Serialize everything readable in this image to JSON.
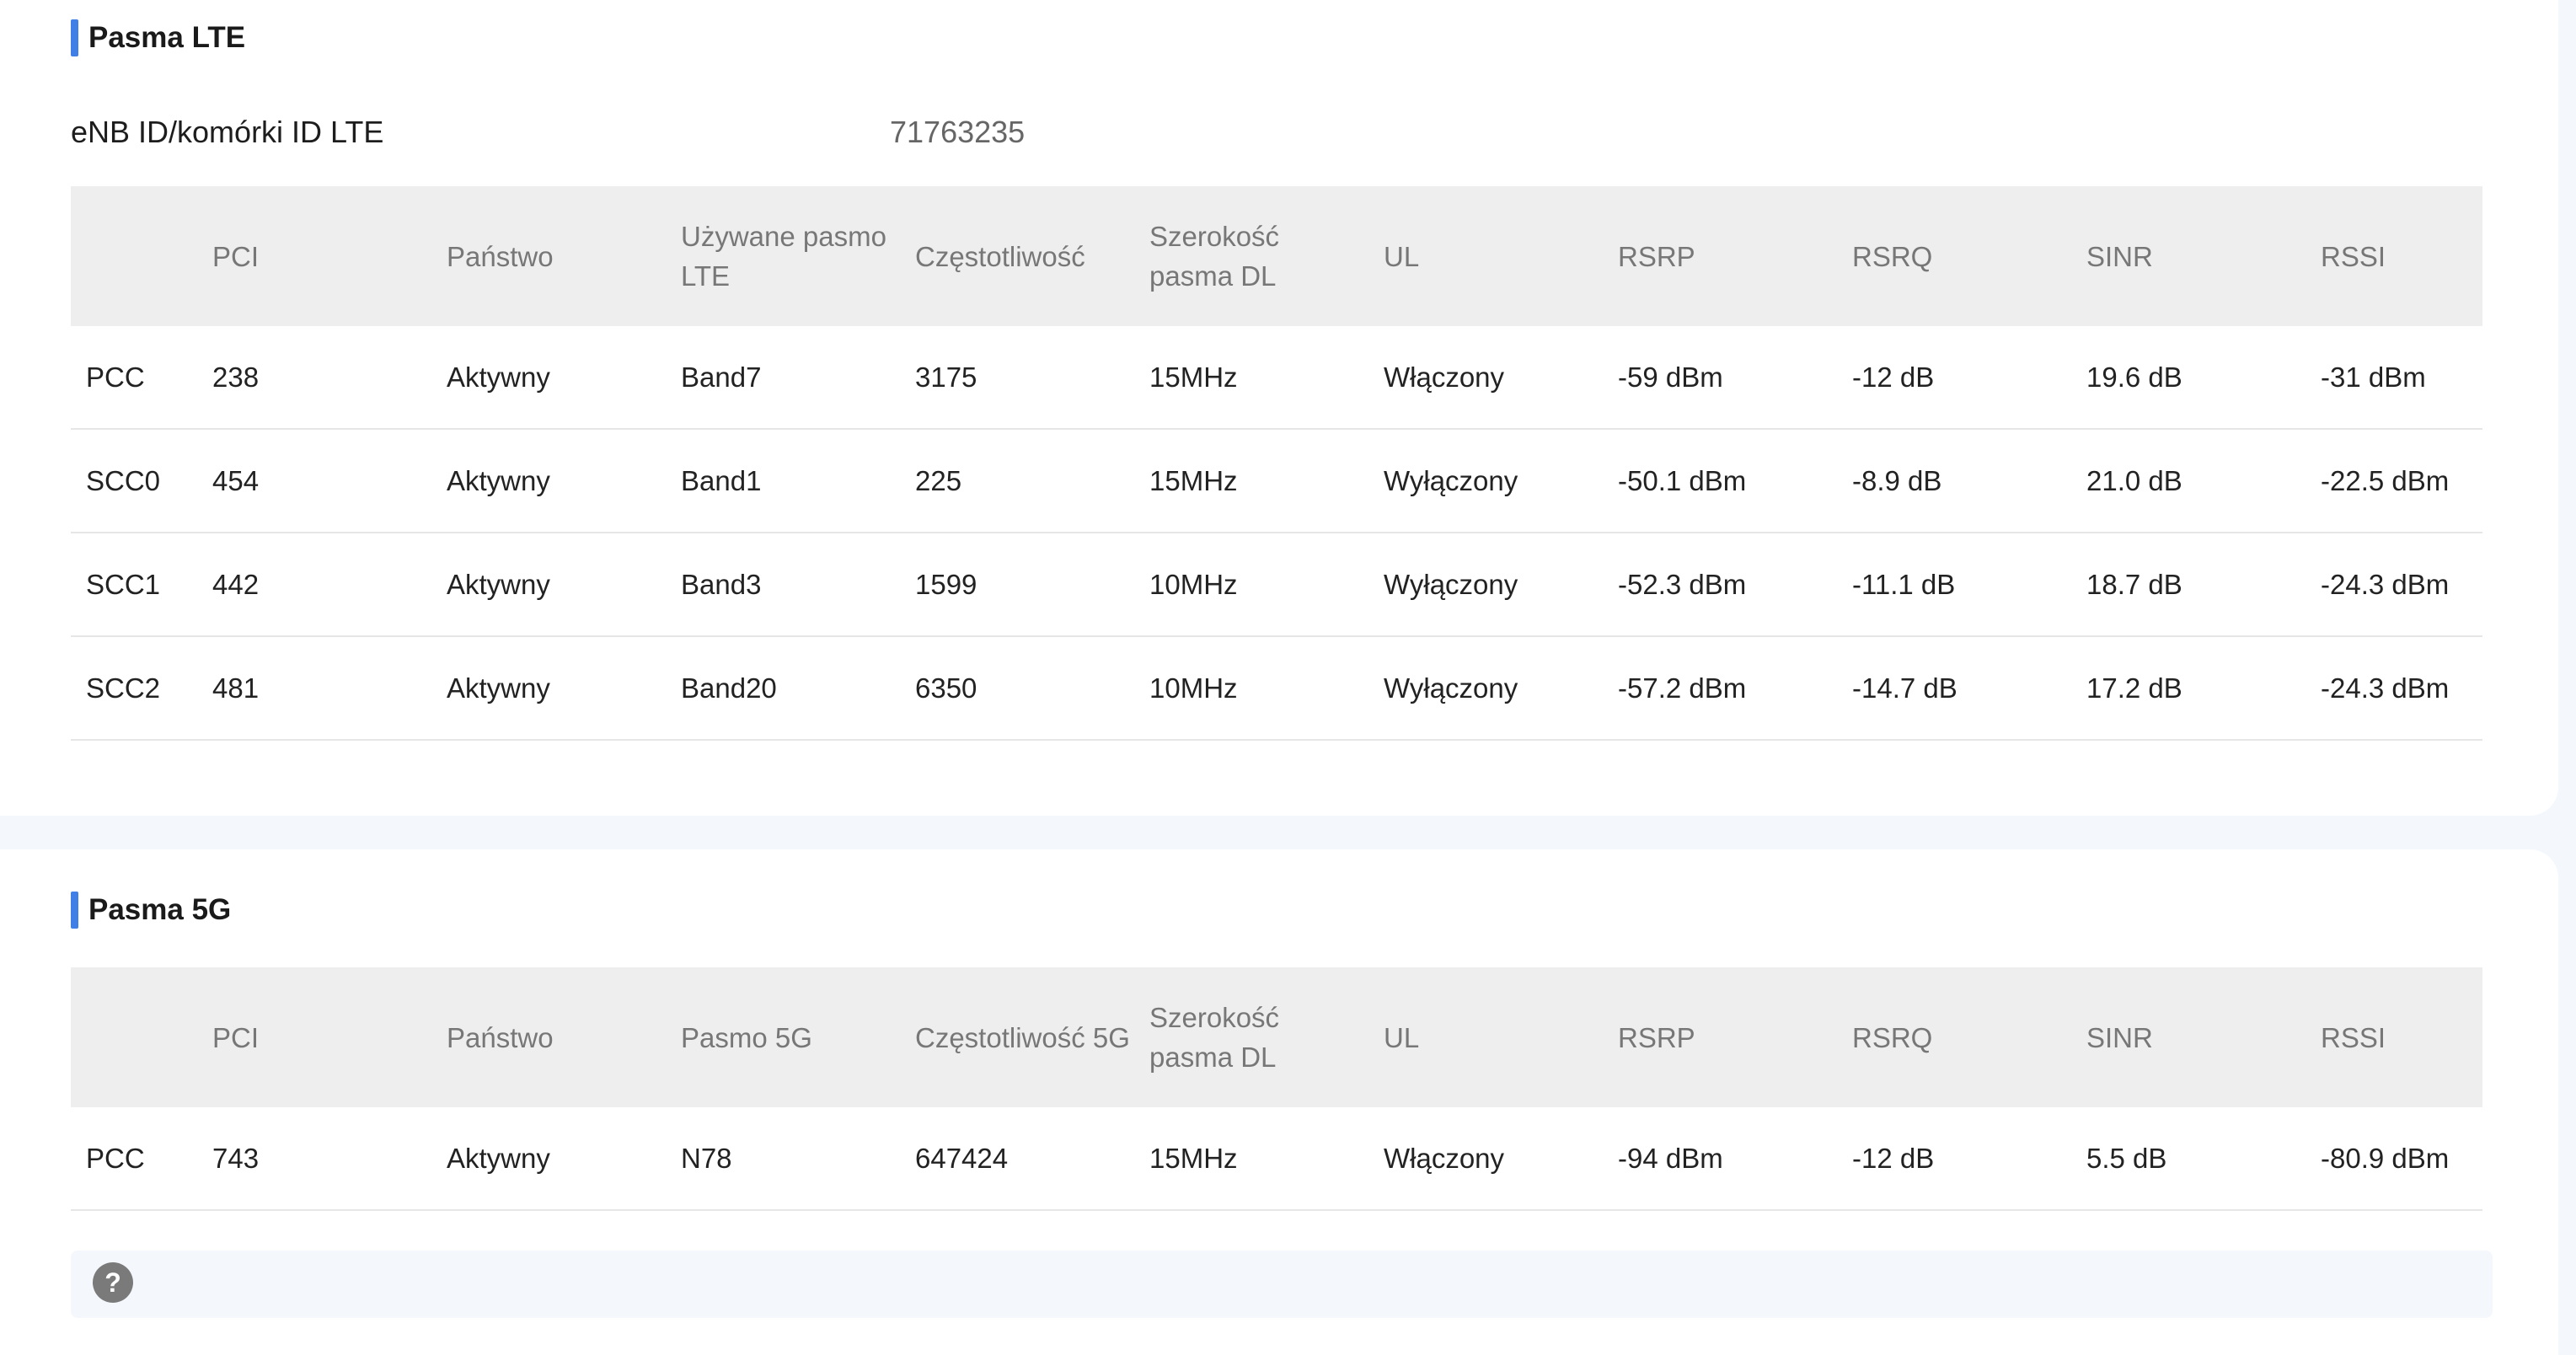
{
  "lte": {
    "title": "Pasma LTE",
    "enb_label": "eNB ID/komórki ID LTE",
    "enb_value": "71763235",
    "headers": [
      "",
      "PCI",
      "Państwo",
      "Używane pasmo LTE",
      "Częstotliwość",
      "Szerokość pasma DL",
      "UL",
      "RSRP",
      "RSRQ",
      "SINR",
      "RSSI"
    ],
    "rows": [
      [
        "PCC",
        "238",
        "Aktywny",
        "Band7",
        "3175",
        "15MHz",
        "Włączony",
        "-59 dBm",
        "-12 dB",
        "19.6 dB",
        "-31 dBm"
      ],
      [
        "SCC0",
        "454",
        "Aktywny",
        "Band1",
        "225",
        "15MHz",
        "Wyłączony",
        "-50.1 dBm",
        "-8.9 dB",
        "21.0 dB",
        "-22.5 dBm"
      ],
      [
        "SCC1",
        "442",
        "Aktywny",
        "Band3",
        "1599",
        "10MHz",
        "Wyłączony",
        "-52.3 dBm",
        "-11.1 dB",
        "18.7 dB",
        "-24.3 dBm"
      ],
      [
        "SCC2",
        "481",
        "Aktywny",
        "Band20",
        "6350",
        "10MHz",
        "Wyłączony",
        "-57.2 dBm",
        "-14.7 dB",
        "17.2 dB",
        "-24.3 dBm"
      ]
    ]
  },
  "nr5g": {
    "title": "Pasma 5G",
    "headers": [
      "",
      "PCI",
      "Państwo",
      "Pasmo 5G",
      "Częstotliwość 5G",
      "Szerokość pasma DL",
      "UL",
      "RSRP",
      "RSRQ",
      "SINR",
      "RSSI"
    ],
    "rows": [
      [
        "PCC",
        "743",
        "Aktywny",
        "N78",
        "647424",
        "15MHz",
        "Włączony",
        "-94 dBm",
        "-12 dB",
        "5.5 dB",
        "-80.9 dBm"
      ]
    ]
  },
  "help": {
    "icon": "question-icon",
    "glyph": "?"
  },
  "colors": {
    "accent": "#3f7fe6",
    "header_bg": "#eeeeee",
    "page_bg": "#f4f8fc"
  }
}
